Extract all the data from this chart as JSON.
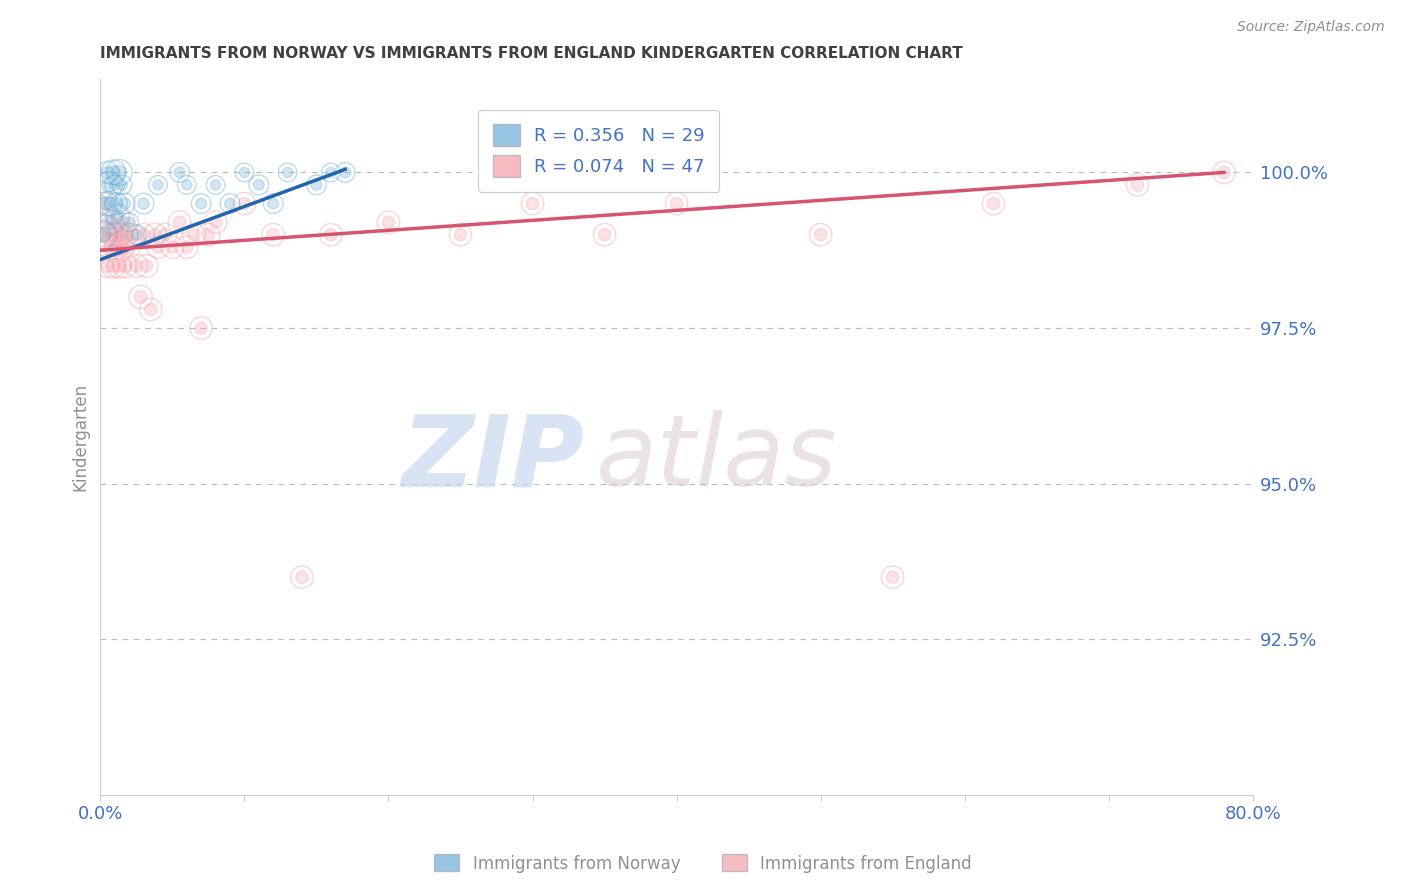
{
  "title": "IMMIGRANTS FROM NORWAY VS IMMIGRANTS FROM ENGLAND KINDERGARTEN CORRELATION CHART",
  "source": "Source: ZipAtlas.com",
  "ylabel": "Kindergarten",
  "yticks": [
    92.5,
    95.0,
    97.5,
    100.0
  ],
  "ytick_labels": [
    "92.5%",
    "95.0%",
    "97.5%",
    "100.0%"
  ],
  "xlim": [
    0.0,
    80.0
  ],
  "ylim": [
    90.0,
    101.5
  ],
  "norway_R": 0.356,
  "norway_N": 29,
  "england_R": 0.074,
  "england_N": 47,
  "norway_color": "#6baed6",
  "england_color": "#f4a0a8",
  "norway_line_color": "#2166ac",
  "england_line_color": "#d6546e",
  "norway_x": [
    0.2,
    0.4,
    0.5,
    0.6,
    0.7,
    0.8,
    0.9,
    1.0,
    1.1,
    1.2,
    1.3,
    1.5,
    1.7,
    2.0,
    2.5,
    3.0,
    4.0,
    5.5,
    6.0,
    7.0,
    8.0,
    9.0,
    10.0,
    11.0,
    12.0,
    13.0,
    15.0,
    16.0,
    17.0
  ],
  "norway_y": [
    99.0,
    99.5,
    100.0,
    99.8,
    99.5,
    99.2,
    100.0,
    99.8,
    99.5,
    99.3,
    100.0,
    99.8,
    99.5,
    99.2,
    99.0,
    99.5,
    99.8,
    100.0,
    99.8,
    99.5,
    99.8,
    99.5,
    100.0,
    99.8,
    99.5,
    100.0,
    99.8,
    100.0,
    100.0
  ],
  "norway_sizes": [
    400,
    300,
    250,
    350,
    300,
    280,
    320,
    200,
    250,
    280,
    350,
    200,
    220,
    180,
    200,
    220,
    180,
    200,
    180,
    200,
    180,
    200,
    180,
    200,
    200,
    180,
    200,
    180,
    200
  ],
  "england_x": [
    0.2,
    0.3,
    0.5,
    0.6,
    0.7,
    0.8,
    0.9,
    1.0,
    1.1,
    1.2,
    1.3,
    1.4,
    1.5,
    1.6,
    1.7,
    1.8,
    2.0,
    2.2,
    2.5,
    2.8,
    3.0,
    3.2,
    3.5,
    3.8,
    4.0,
    4.5,
    5.0,
    5.5,
    6.0,
    6.5,
    7.0,
    7.5,
    8.0,
    10.0,
    12.0,
    14.0,
    16.0,
    20.0,
    25.0,
    30.0,
    35.0,
    40.0,
    50.0,
    55.0,
    62.0,
    72.0,
    78.0
  ],
  "england_y": [
    99.5,
    99.0,
    98.5,
    99.2,
    98.8,
    99.0,
    98.5,
    99.0,
    98.8,
    99.0,
    98.5,
    99.0,
    98.8,
    99.2,
    98.5,
    99.0,
    98.8,
    99.0,
    98.5,
    98.0,
    99.0,
    98.5,
    97.8,
    99.0,
    98.8,
    99.0,
    98.8,
    99.2,
    98.8,
    99.0,
    97.5,
    99.0,
    99.2,
    99.5,
    99.0,
    93.5,
    99.0,
    99.2,
    99.0,
    99.5,
    99.0,
    99.5,
    99.0,
    93.5,
    99.5,
    99.8,
    100.0
  ],
  "england_sizes": [
    250,
    300,
    280,
    320,
    300,
    280,
    300,
    280,
    300,
    280,
    300,
    280,
    300,
    280,
    300,
    280,
    250,
    260,
    270,
    280,
    260,
    270,
    260,
    270,
    260,
    270,
    260,
    270,
    260,
    270,
    260,
    270,
    260,
    260,
    260,
    260,
    260,
    260,
    260,
    260,
    260,
    260,
    260,
    260,
    260,
    260,
    260
  ],
  "norway_line_x": [
    0.0,
    17.0
  ],
  "norway_line_y": [
    98.6,
    100.05
  ],
  "england_line_x": [
    0.0,
    78.0
  ],
  "england_line_y": [
    98.75,
    100.0
  ],
  "watermark_zip": "ZIP",
  "watermark_atlas": "atlas",
  "background_color": "#ffffff",
  "grid_color": "#bbbbbb",
  "tick_label_color": "#4472c4",
  "title_color": "#404040",
  "axis_label_color": "#909090"
}
